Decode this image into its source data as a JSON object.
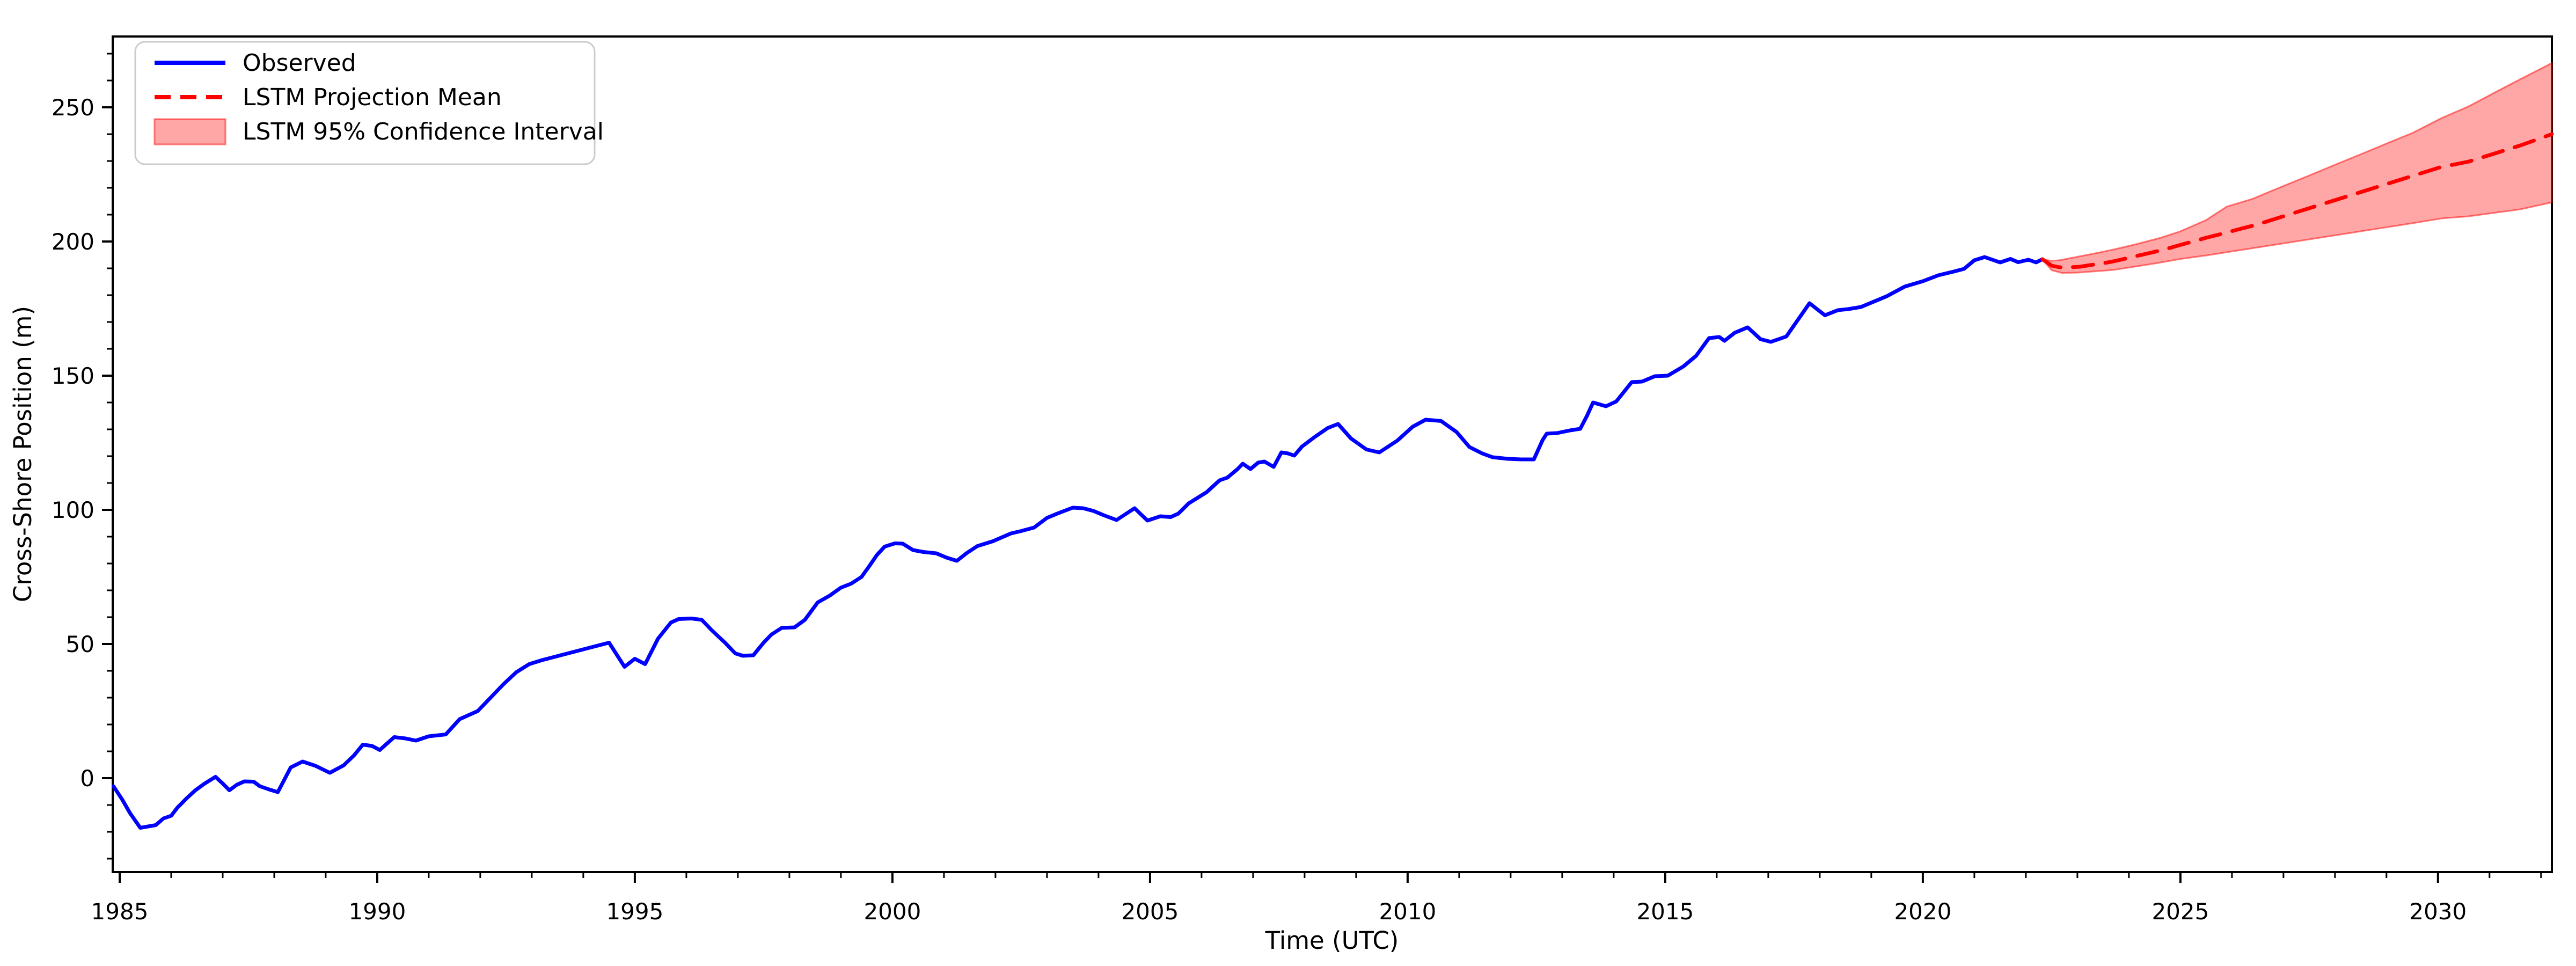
{
  "colors": {
    "observed": "#0000ff",
    "projection": "#ff0000",
    "band_fill": "rgba(255,0,0,0.35)",
    "band_edge": "rgba(255,0,0,0.50)",
    "spine": "#000000",
    "legend_border": "#cccccc",
    "background": "#ffffff"
  },
  "chart_data": {
    "type": "line",
    "title": "",
    "xlabel": "Time (UTC)",
    "ylabel": "Cross-Shore Position (m)",
    "xlim": [
      1984.865,
      2032.21
    ],
    "ylim": [
      -35,
      276.4
    ],
    "xticks": [
      1985,
      1990,
      1995,
      2000,
      2005,
      2010,
      2015,
      2020,
      2025,
      2030
    ],
    "yticks": [
      0,
      50,
      100,
      150,
      200,
      250
    ],
    "x_minor_step": 1,
    "y_minor_step": 10,
    "grid": false,
    "legend_position": "upper left",
    "series": [
      {
        "name": "Observed",
        "type": "line",
        "style": "solid",
        "color": "#0000ff",
        "points": [
          [
            1984.88,
            -3.0
          ],
          [
            1985.05,
            -8.0
          ],
          [
            1985.2,
            -13.0
          ],
          [
            1985.4,
            -18.5
          ],
          [
            1985.55,
            -18.0
          ],
          [
            1985.7,
            -17.5
          ],
          [
            1985.85,
            -15.0
          ],
          [
            1986.0,
            -14.0
          ],
          [
            1986.12,
            -11.0
          ],
          [
            1986.3,
            -7.5
          ],
          [
            1986.47,
            -4.5
          ],
          [
            1986.65,
            -2.0
          ],
          [
            1986.86,
            0.5
          ],
          [
            1987.0,
            -2.0
          ],
          [
            1987.13,
            -4.5
          ],
          [
            1987.27,
            -2.5
          ],
          [
            1987.42,
            -1.2
          ],
          [
            1987.6,
            -1.3
          ],
          [
            1987.72,
            -3.0
          ],
          [
            1987.9,
            -4.2
          ],
          [
            1988.07,
            -5.2
          ],
          [
            1988.32,
            4.0
          ],
          [
            1988.55,
            6.2
          ],
          [
            1988.8,
            4.6
          ],
          [
            1989.08,
            2.0
          ],
          [
            1989.35,
            4.8
          ],
          [
            1989.55,
            8.5
          ],
          [
            1989.72,
            12.5
          ],
          [
            1989.9,
            12.0
          ],
          [
            1990.05,
            10.5
          ],
          [
            1990.33,
            15.3
          ],
          [
            1990.55,
            14.8
          ],
          [
            1990.75,
            14.0
          ],
          [
            1991.0,
            15.6
          ],
          [
            1991.33,
            16.3
          ],
          [
            1991.6,
            22.0
          ],
          [
            1991.95,
            25.0
          ],
          [
            1992.2,
            30.0
          ],
          [
            1992.45,
            35.0
          ],
          [
            1992.7,
            39.5
          ],
          [
            1992.95,
            42.5
          ],
          [
            1993.2,
            44.0
          ],
          [
            1993.6,
            46.0
          ],
          [
            1993.9,
            47.5
          ],
          [
            1994.1,
            48.5
          ],
          [
            1994.5,
            50.5
          ],
          [
            1994.8,
            41.5
          ],
          [
            1995.0,
            44.5
          ],
          [
            1995.2,
            42.5
          ],
          [
            1995.45,
            52.0
          ],
          [
            1995.7,
            58.0
          ],
          [
            1995.85,
            59.3
          ],
          [
            1996.1,
            59.5
          ],
          [
            1996.3,
            59.0
          ],
          [
            1996.5,
            55.0
          ],
          [
            1996.75,
            50.5
          ],
          [
            1996.95,
            46.5
          ],
          [
            1997.1,
            45.6
          ],
          [
            1997.3,
            45.8
          ],
          [
            1997.5,
            50.5
          ],
          [
            1997.65,
            53.5
          ],
          [
            1997.85,
            56.0
          ],
          [
            1998.1,
            56.2
          ],
          [
            1998.3,
            59.0
          ],
          [
            1998.55,
            65.5
          ],
          [
            1998.78,
            68.0
          ],
          [
            1999.0,
            71.0
          ],
          [
            1999.2,
            72.5
          ],
          [
            1999.4,
            75.0
          ],
          [
            1999.55,
            79.0
          ],
          [
            1999.7,
            83.2
          ],
          [
            1999.85,
            86.3
          ],
          [
            2000.05,
            87.5
          ],
          [
            2000.2,
            87.4
          ],
          [
            2000.4,
            85.0
          ],
          [
            2000.6,
            84.3
          ],
          [
            2000.85,
            83.8
          ],
          [
            2001.05,
            82.2
          ],
          [
            2001.25,
            81.0
          ],
          [
            2001.45,
            84.0
          ],
          [
            2001.65,
            86.5
          ],
          [
            2001.95,
            88.3
          ],
          [
            2002.3,
            91.2
          ],
          [
            2002.5,
            92.1
          ],
          [
            2002.75,
            93.4
          ],
          [
            2003.0,
            97.0
          ],
          [
            2003.2,
            98.6
          ],
          [
            2003.5,
            100.8
          ],
          [
            2003.7,
            100.6
          ],
          [
            2003.9,
            99.6
          ],
          [
            2004.1,
            98.0
          ],
          [
            2004.35,
            96.2
          ],
          [
            2004.7,
            100.6
          ],
          [
            2004.95,
            96.0
          ],
          [
            2005.2,
            97.6
          ],
          [
            2005.4,
            97.3
          ],
          [
            2005.55,
            98.6
          ],
          [
            2005.75,
            102.4
          ],
          [
            2005.95,
            104.8
          ],
          [
            2006.1,
            106.6
          ],
          [
            2006.35,
            111.0
          ],
          [
            2006.5,
            112.0
          ],
          [
            2006.7,
            115.2
          ],
          [
            2006.8,
            117.2
          ],
          [
            2006.95,
            115.2
          ],
          [
            2007.1,
            117.6
          ],
          [
            2007.22,
            118.0
          ],
          [
            2007.4,
            116.0
          ],
          [
            2007.55,
            121.4
          ],
          [
            2007.68,
            121.0
          ],
          [
            2007.8,
            120.2
          ],
          [
            2007.95,
            123.6
          ],
          [
            2008.2,
            127.2
          ],
          [
            2008.45,
            130.5
          ],
          [
            2008.65,
            132.0
          ],
          [
            2008.9,
            126.6
          ],
          [
            2009.2,
            122.5
          ],
          [
            2009.45,
            121.4
          ],
          [
            2009.8,
            125.8
          ],
          [
            2010.1,
            131.0
          ],
          [
            2010.35,
            133.6
          ],
          [
            2010.65,
            133.1
          ],
          [
            2010.95,
            129.0
          ],
          [
            2011.2,
            123.4
          ],
          [
            2011.45,
            121.0
          ],
          [
            2011.65,
            119.6
          ],
          [
            2011.95,
            119.0
          ],
          [
            2012.2,
            118.8
          ],
          [
            2012.45,
            118.8
          ],
          [
            2012.62,
            126.0
          ],
          [
            2012.7,
            128.4
          ],
          [
            2012.9,
            128.6
          ],
          [
            2013.15,
            129.6
          ],
          [
            2013.35,
            130.2
          ],
          [
            2013.48,
            135.0
          ],
          [
            2013.6,
            140.0
          ],
          [
            2013.85,
            138.6
          ],
          [
            2014.05,
            140.4
          ],
          [
            2014.35,
            147.6
          ],
          [
            2014.55,
            147.8
          ],
          [
            2014.8,
            149.8
          ],
          [
            2015.05,
            150.0
          ],
          [
            2015.35,
            153.4
          ],
          [
            2015.6,
            157.4
          ],
          [
            2015.85,
            164.0
          ],
          [
            2016.05,
            164.4
          ],
          [
            2016.15,
            163.0
          ],
          [
            2016.35,
            166.0
          ],
          [
            2016.6,
            168.0
          ],
          [
            2016.85,
            163.6
          ],
          [
            2017.05,
            162.6
          ],
          [
            2017.2,
            163.6
          ],
          [
            2017.35,
            164.6
          ],
          [
            2017.8,
            177.0
          ],
          [
            2018.1,
            172.5
          ],
          [
            2018.35,
            174.4
          ],
          [
            2018.55,
            174.8
          ],
          [
            2018.8,
            175.6
          ],
          [
            2019.05,
            177.6
          ],
          [
            2019.3,
            179.6
          ],
          [
            2019.65,
            183.2
          ],
          [
            2020.0,
            185.2
          ],
          [
            2020.3,
            187.4
          ],
          [
            2020.6,
            188.8
          ],
          [
            2020.8,
            189.8
          ],
          [
            2021.0,
            193.0
          ],
          [
            2021.2,
            194.2
          ],
          [
            2021.5,
            192.2
          ],
          [
            2021.7,
            193.5
          ],
          [
            2021.85,
            192.3
          ],
          [
            2022.05,
            193.2
          ],
          [
            2022.2,
            192.2
          ],
          [
            2022.32,
            193.4
          ]
        ]
      },
      {
        "name": "LSTM Projection Mean",
        "type": "line",
        "style": "dashed",
        "color": "#ff0000",
        "points": [
          [
            2022.32,
            193.4
          ],
          [
            2022.5,
            191.0
          ],
          [
            2022.65,
            190.4
          ],
          [
            2022.85,
            190.4
          ],
          [
            2023.05,
            190.6
          ],
          [
            2023.25,
            191.2
          ],
          [
            2023.5,
            191.9
          ],
          [
            2023.7,
            192.6
          ],
          [
            2023.95,
            193.7
          ],
          [
            2024.15,
            194.6
          ],
          [
            2024.4,
            195.7
          ],
          [
            2024.6,
            196.6
          ],
          [
            2024.85,
            197.9
          ],
          [
            2025.05,
            199.0
          ],
          [
            2025.3,
            200.3
          ],
          [
            2025.5,
            201.4
          ],
          [
            2025.75,
            202.6
          ],
          [
            2025.95,
            203.6
          ],
          [
            2026.2,
            204.9
          ],
          [
            2026.45,
            206.1
          ],
          [
            2027.0,
            209.4
          ],
          [
            2027.5,
            212.4
          ],
          [
            2028.0,
            215.4
          ],
          [
            2028.5,
            218.4
          ],
          [
            2029.0,
            221.4
          ],
          [
            2029.5,
            224.4
          ],
          [
            2030.05,
            227.7
          ],
          [
            2030.6,
            229.8
          ],
          [
            2031.0,
            232.2
          ],
          [
            2031.6,
            235.8
          ],
          [
            2032.21,
            240.0
          ]
        ]
      },
      {
        "name": "LSTM 95% Confidence Interval",
        "type": "band",
        "fill_color": "rgba(255,0,0,0.35)",
        "edge_color": "rgba(255,0,0,0.50)",
        "upper": [
          [
            2022.32,
            193.4
          ],
          [
            2022.5,
            192.8
          ],
          [
            2022.65,
            193.0
          ],
          [
            2023.0,
            194.3
          ],
          [
            2023.4,
            195.8
          ],
          [
            2023.7,
            197.0
          ],
          [
            2024.1,
            198.8
          ],
          [
            2024.6,
            201.3
          ],
          [
            2025.0,
            203.8
          ],
          [
            2025.5,
            208.0
          ],
          [
            2025.9,
            213.0
          ],
          [
            2026.4,
            215.9
          ],
          [
            2027.0,
            220.7
          ],
          [
            2027.5,
            224.6
          ],
          [
            2028.0,
            228.6
          ],
          [
            2028.5,
            232.5
          ],
          [
            2029.0,
            236.5
          ],
          [
            2029.5,
            240.4
          ],
          [
            2030.07,
            246.0
          ],
          [
            2030.6,
            250.4
          ],
          [
            2031.1,
            255.5
          ],
          [
            2031.6,
            260.5
          ],
          [
            2032.21,
            266.5
          ]
        ],
        "lower": [
          [
            2022.32,
            193.4
          ],
          [
            2022.5,
            189.3
          ],
          [
            2022.7,
            188.3
          ],
          [
            2023.0,
            188.4
          ],
          [
            2023.35,
            188.9
          ],
          [
            2023.7,
            189.4
          ],
          [
            2024.1,
            190.6
          ],
          [
            2024.5,
            191.8
          ],
          [
            2025.0,
            193.5
          ],
          [
            2025.5,
            194.8
          ],
          [
            2025.9,
            196.0
          ],
          [
            2026.4,
            197.5
          ],
          [
            2027.0,
            199.3
          ],
          [
            2027.5,
            200.8
          ],
          [
            2028.0,
            202.3
          ],
          [
            2028.5,
            203.8
          ],
          [
            2029.0,
            205.3
          ],
          [
            2029.5,
            206.8
          ],
          [
            2030.07,
            208.6
          ],
          [
            2030.6,
            209.4
          ],
          [
            2031.1,
            210.7
          ],
          [
            2031.6,
            212.0
          ],
          [
            2032.21,
            214.6
          ]
        ]
      }
    ]
  },
  "legend": {
    "items": [
      {
        "label": "Observed"
      },
      {
        "label": "LSTM Projection Mean"
      },
      {
        "label": "LSTM 95% Confidence Interval"
      }
    ]
  }
}
